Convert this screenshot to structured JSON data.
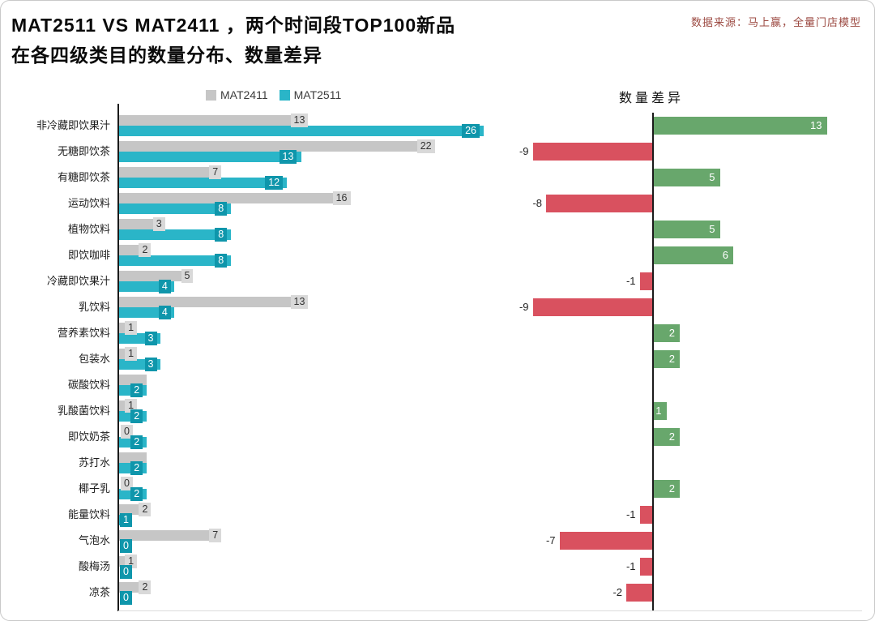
{
  "header": {
    "title_line1": "MAT2511 VS MAT2411 ，两个时间段TOP100新品",
    "title_line2": "在各四级类目的数量分布、数量差异",
    "source": "数据来源：马上赢，全量门店模型"
  },
  "legend": {
    "mat2411": "MAT2411",
    "mat2511": "MAT2511"
  },
  "diff_title": "数量差异",
  "colors": {
    "mat2411_bar": "#c6c6c6",
    "mat2411_label_bg": "#d9d9d9",
    "mat2511_bar": "#2ab5c8",
    "mat2511_label_bg": "#0f96ab",
    "diff_positive": "#68a76c",
    "diff_negative": "#d9515f",
    "source_text": "#9c4a42"
  },
  "chart_data": {
    "type": "bar",
    "orientation": "horizontal",
    "title": "MAT2511 VS MAT2411 ，两个时间段TOP100新品在各四级类目的数量分布、数量差异",
    "legend_position": "top",
    "diff_column_title": "数量差异",
    "categories": [
      "非冷藏即饮果汁",
      "无糖即饮茶",
      "有糖即饮茶",
      "运动饮料",
      "植物饮料",
      "即饮咖啡",
      "冷藏即饮果汁",
      "乳饮料",
      "营养素饮料",
      "包装水",
      "碳酸饮料",
      "乳酸菌饮料",
      "即饮奶茶",
      "苏打水",
      "椰子乳",
      "能量饮料",
      "气泡水",
      "酸梅汤",
      "凉茶"
    ],
    "series": [
      {
        "name": "MAT2411",
        "values": [
          13,
          22,
          7,
          16,
          3,
          2,
          5,
          13,
          1,
          1,
          2,
          1,
          0,
          2,
          0,
          2,
          7,
          1,
          2
        ]
      },
      {
        "name": "MAT2511",
        "values": [
          26,
          13,
          12,
          8,
          8,
          8,
          4,
          4,
          3,
          3,
          2,
          2,
          2,
          2,
          2,
          1,
          0,
          0,
          0
        ]
      },
      {
        "name": "数量差异",
        "values": [
          13,
          -9,
          5,
          -8,
          5,
          6,
          -1,
          -9,
          2,
          2,
          0,
          1,
          2,
          0,
          2,
          -1,
          -7,
          -1,
          -2
        ]
      }
    ],
    "mat2411_label_hidden_rows": [
      10,
      13
    ],
    "xlim_left": [
      0,
      28
    ],
    "xlim_diff": [
      -10,
      14
    ],
    "grid": false
  }
}
